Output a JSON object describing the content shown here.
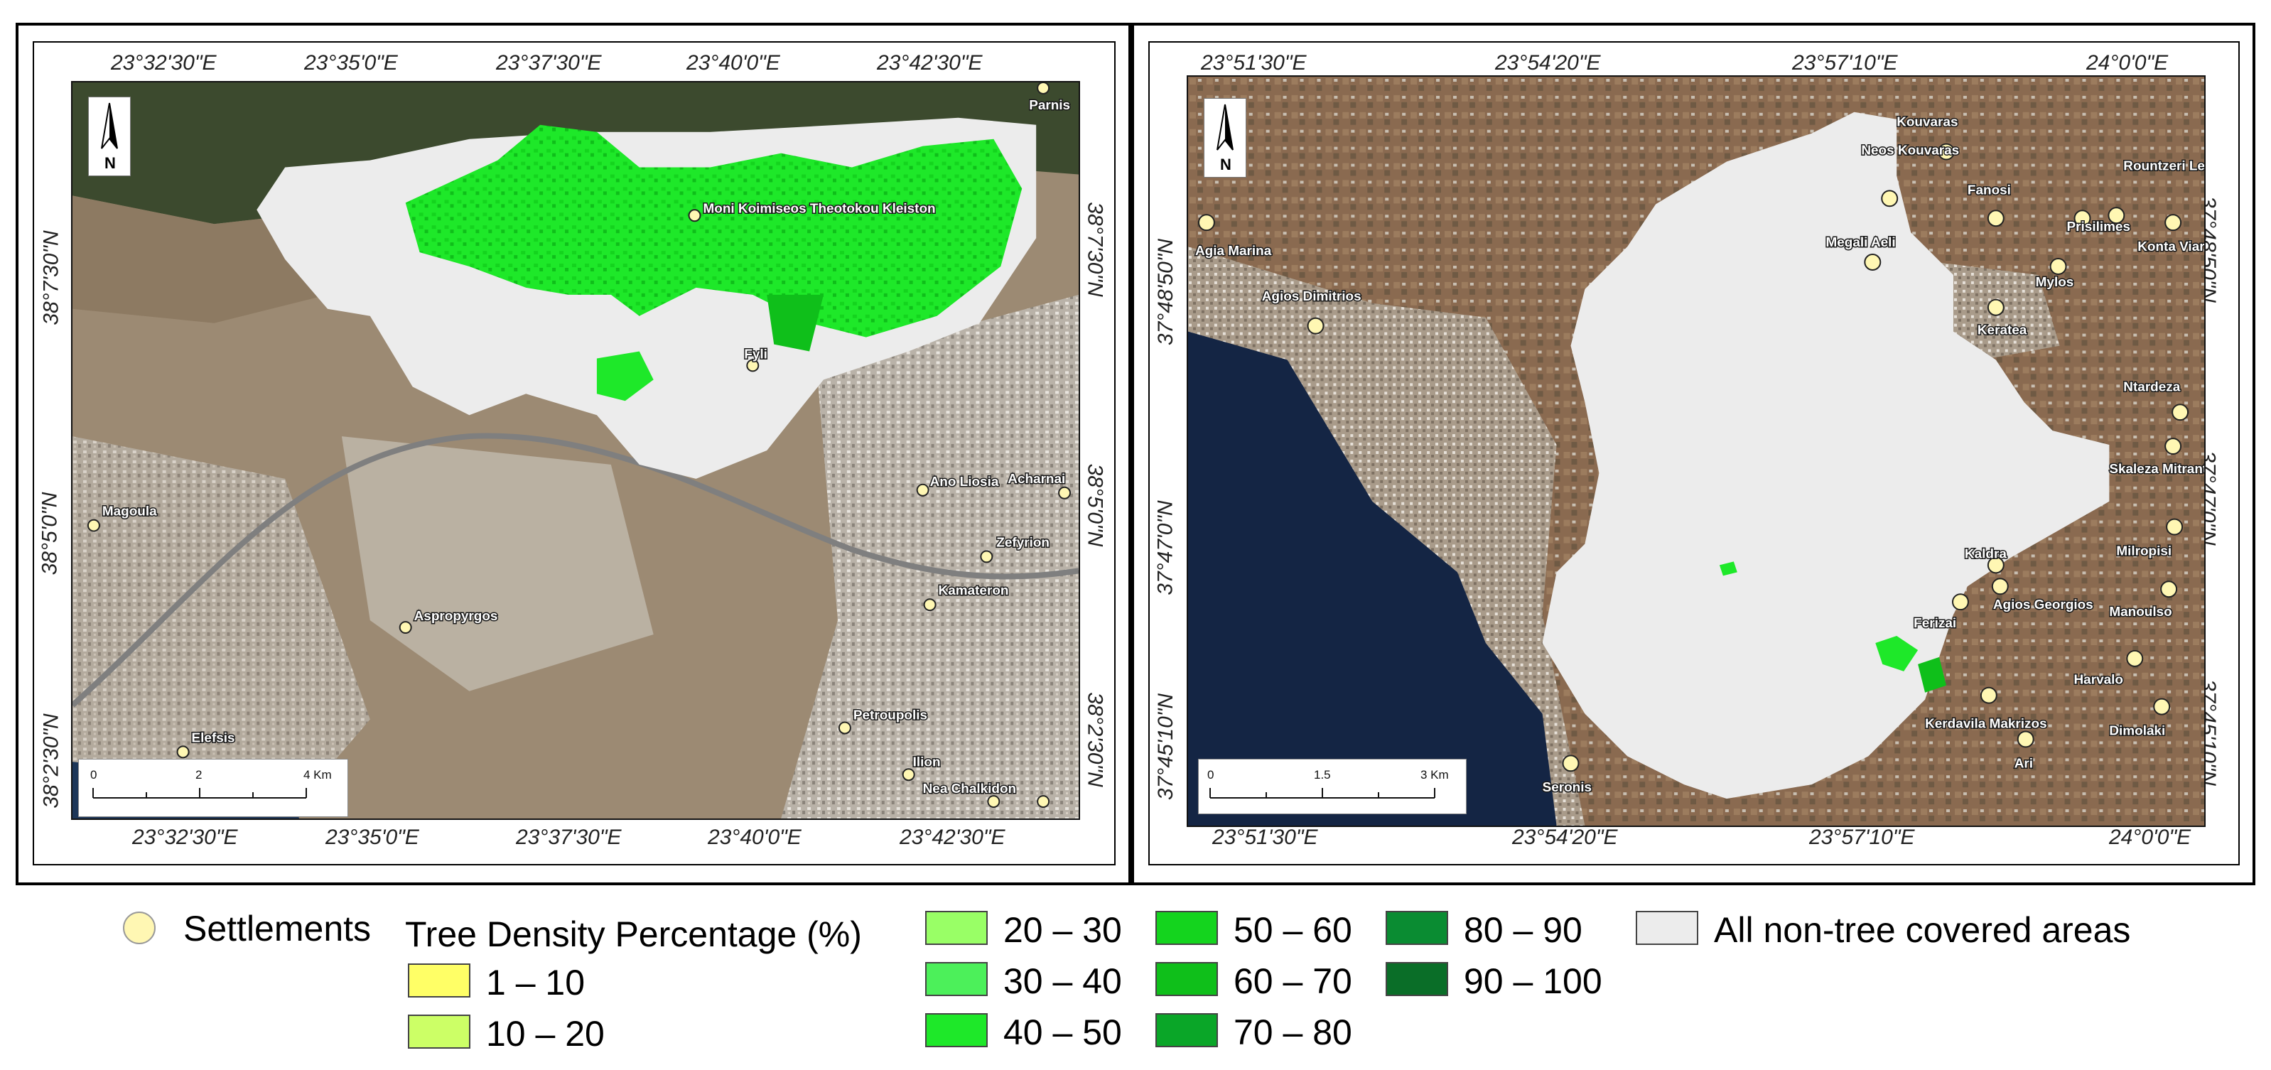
{
  "left_map": {
    "top_ticks": [
      "23°32'30\"E",
      "23°35'0\"E",
      "23°37'30\"E",
      "23°40'0\"E",
      "23°42'30\"E"
    ],
    "bottom_ticks": [
      "23°32'30\"E",
      "23°35'0\"E",
      "23°37'30\"E",
      "23°40'0\"E",
      "23°42'30\"E"
    ],
    "left_ticks": [
      "38°7'30\"N",
      "38°5'0\"N",
      "38°2'30\"N"
    ],
    "right_ticks": [
      "38°7'30\"N",
      "38°5'0\"N",
      "38°2'30\"N"
    ],
    "settlements": [
      "Parnis",
      "Moni Koimiseos Theotokou Kleiston",
      "Fyli",
      "Ano Liosia",
      "Acharnai",
      "Magoula",
      "Zefyrion",
      "Kamateron",
      "Aspropyrgos",
      "Petroupolis",
      "Elefsis",
      "Ilion",
      "Nea Chalkidon"
    ],
    "scale": {
      "labels": [
        "0",
        "2",
        "4 Km"
      ]
    },
    "north_label": "N"
  },
  "right_map": {
    "top_ticks": [
      "23°51'30\"E",
      "23°54'20\"E",
      "23°57'10\"E",
      "24°0'0\"E"
    ],
    "bottom_ticks": [
      "23°51'30\"E",
      "23°54'20\"E",
      "23°57'10\"E",
      "24°0'0\"E"
    ],
    "left_ticks": [
      "37°48'50\"N",
      "37°47'0\"N",
      "37°45'10\"N"
    ],
    "right_ticks": [
      "37°48'50\"N",
      "37°47'0\"N",
      "37°45'10\"N"
    ],
    "settlements": [
      "Kouvaras",
      "Neos Kouvaras",
      "Fanosi",
      "Rountzeri Lemprou",
      "Agia Marina",
      "Prisilimes",
      "Konta Viara",
      "Megali Aeli",
      "Mylos",
      "Agios Dimitrios",
      "Keratea",
      "Ntardeza",
      "Skaleza Mitrantoni",
      "Milropisi",
      "Kaldra",
      "Agios Georgios",
      "Ferizai",
      "Manoulso",
      "Harvalo",
      "Kerdavila Makrizos",
      "Dimolaki",
      "Ari",
      "Seronis"
    ],
    "scale": {
      "labels": [
        "0",
        "1.5",
        "3 Km"
      ]
    },
    "north_label": "N"
  },
  "legend": {
    "settlements_label": "Settlements",
    "title": "Tree Density Percentage (%)",
    "classes": [
      {
        "label": "1 – 10",
        "color": "#ffff66"
      },
      {
        "label": "10 – 20",
        "color": "#ccff66"
      },
      {
        "label": "20 – 30",
        "color": "#99ff66"
      },
      {
        "label": "30 – 40",
        "color": "#4cf05a"
      },
      {
        "label": "40 – 50",
        "color": "#1ee829"
      },
      {
        "label": "50 – 60",
        "color": "#14d41e"
      },
      {
        "label": "60 – 70",
        "color": "#0fbf1a"
      },
      {
        "label": "70 – 80",
        "color": "#0aa628"
      },
      {
        "label": "80 – 90",
        "color": "#0a8c32"
      },
      {
        "label": "90 – 100",
        "color": "#0a6e28"
      }
    ],
    "nontree_label": "All non-tree covered areas",
    "nontree_color": "#ececec",
    "settlement_color": "#fff7b3"
  }
}
